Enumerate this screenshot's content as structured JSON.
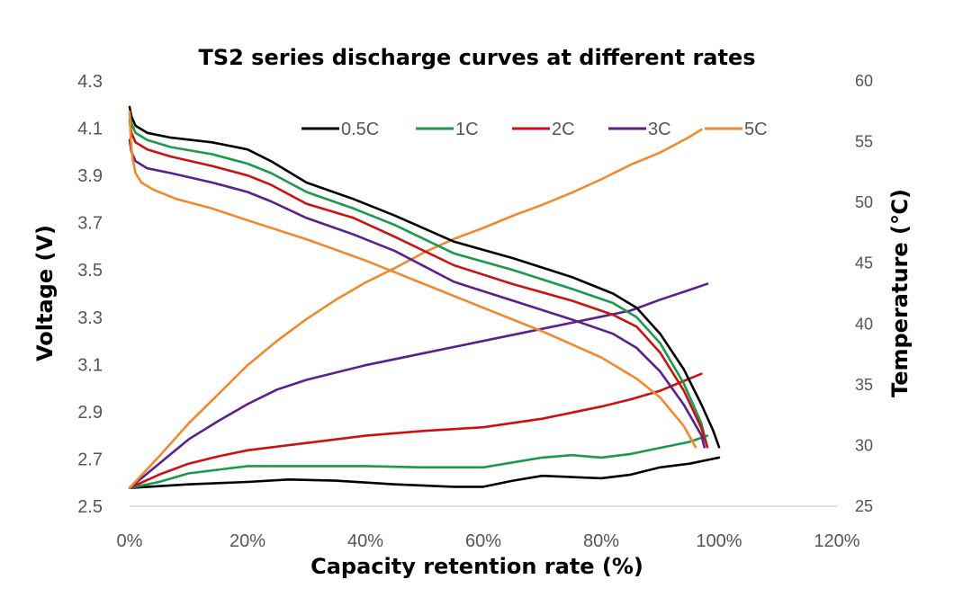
{
  "chart_data": {
    "type": "line",
    "title": "TS2 series discharge curves at different rates",
    "xlabel": "Capacity retention rate (%)",
    "ylabel": "Voltage (V)",
    "y2label": "Temperature (℃)",
    "xlim": [
      0,
      120
    ],
    "ylim": [
      2.5,
      4.3
    ],
    "y2lim": [
      25,
      60
    ],
    "xticks": [
      0,
      20,
      40,
      60,
      80,
      100,
      120
    ],
    "xtick_labels": [
      "0%",
      "20%",
      "40%",
      "60%",
      "80%",
      "100%",
      "120%"
    ],
    "yticks": [
      2.5,
      2.7,
      2.9,
      3.1,
      3.3,
      3.5,
      3.7,
      3.9,
      4.1,
      4.3
    ],
    "ytick_labels": [
      "2.5",
      "2.7",
      "2.9",
      "3.1",
      "3.3",
      "3.5",
      "3.7",
      "3.9",
      "4.1",
      "4.3"
    ],
    "y2ticks": [
      25,
      30,
      35,
      40,
      45,
      50,
      55,
      60
    ],
    "y2tick_labels": [
      "25",
      "30",
      "35",
      "40",
      "45",
      "50",
      "55",
      "60"
    ],
    "grid": false,
    "legend": "top",
    "series": [
      {
        "name": "0.5C",
        "color": "#000000",
        "voltage": {
          "x": [
            0,
            0.3,
            1,
            3,
            7,
            14,
            20,
            24,
            30,
            38,
            45,
            55,
            65,
            75,
            82,
            86,
            90,
            94,
            97,
            99,
            100
          ],
          "y": [
            4.19,
            4.15,
            4.11,
            4.08,
            4.06,
            4.04,
            4.01,
            3.96,
            3.87,
            3.8,
            3.73,
            3.62,
            3.55,
            3.47,
            3.4,
            3.34,
            3.23,
            3.08,
            2.93,
            2.82,
            2.75
          ]
        },
        "temperature": {
          "x": [
            0,
            10,
            20,
            27,
            35,
            45,
            55,
            60,
            65,
            70,
            75,
            80,
            85,
            90,
            95,
            100
          ],
          "y": [
            26.5,
            26.8,
            27,
            27.2,
            27.1,
            26.8,
            26.6,
            26.6,
            27.1,
            27.5,
            27.4,
            27.3,
            27.6,
            28.2,
            28.5,
            29
          ]
        }
      },
      {
        "name": "1C",
        "color": "#1a9a4a",
        "voltage": {
          "x": [
            0,
            0.3,
            1,
            3,
            7,
            14,
            20,
            24,
            30,
            38,
            45,
            55,
            65,
            75,
            82,
            86,
            90,
            94,
            97,
            98
          ],
          "y": [
            4.16,
            4.12,
            4.08,
            4.05,
            4.02,
            3.99,
            3.95,
            3.91,
            3.83,
            3.76,
            3.69,
            3.57,
            3.5,
            3.42,
            3.36,
            3.3,
            3.19,
            3.02,
            2.85,
            2.75
          ]
        },
        "temperature": {
          "x": [
            0,
            5,
            10,
            20,
            30,
            40,
            50,
            60,
            65,
            70,
            75,
            80,
            85,
            90,
            95,
            98
          ],
          "y": [
            26.5,
            27,
            27.7,
            28.3,
            28.3,
            28.3,
            28.2,
            28.2,
            28.6,
            29.0,
            29.2,
            29.0,
            29.3,
            29.8,
            30.3,
            30.8
          ]
        }
      },
      {
        "name": "2C",
        "color": "#cc1111",
        "voltage": {
          "x": [
            0,
            0.3,
            1,
            3,
            7,
            14,
            20,
            24,
            30,
            38,
            45,
            55,
            65,
            75,
            82,
            86,
            90,
            94,
            97,
            98
          ],
          "y": [
            4.13,
            4.08,
            4.04,
            4.01,
            3.98,
            3.94,
            3.9,
            3.86,
            3.78,
            3.72,
            3.64,
            3.52,
            3.44,
            3.37,
            3.31,
            3.26,
            3.15,
            2.99,
            2.83,
            2.75
          ]
        },
        "temperature": {
          "x": [
            0,
            5,
            10,
            15,
            20,
            30,
            40,
            50,
            60,
            70,
            80,
            85,
            90,
            93,
            95,
            97
          ],
          "y": [
            26.5,
            27.6,
            28.5,
            29.1,
            29.6,
            30.2,
            30.8,
            31.2,
            31.5,
            32.2,
            33.2,
            33.8,
            34.5,
            35.1,
            35.5,
            35.9
          ]
        }
      },
      {
        "name": "3C",
        "color": "#5b1f8e",
        "voltage": {
          "x": [
            0,
            0.3,
            1,
            3,
            7,
            14,
            20,
            24,
            30,
            38,
            45,
            55,
            65,
            75,
            82,
            86,
            90,
            94,
            97,
            97.5
          ],
          "y": [
            4.05,
            4.0,
            3.96,
            3.93,
            3.91,
            3.87,
            3.83,
            3.79,
            3.72,
            3.65,
            3.58,
            3.45,
            3.37,
            3.29,
            3.23,
            3.17,
            3.07,
            2.93,
            2.8,
            2.75
          ]
        },
        "temperature": {
          "x": [
            0,
            5,
            10,
            15,
            20,
            25,
            30,
            40,
            50,
            60,
            70,
            80,
            85,
            90,
            95,
            98
          ],
          "y": [
            26.5,
            28.5,
            30.5,
            32,
            33.4,
            34.6,
            35.4,
            36.6,
            37.6,
            38.6,
            39.6,
            40.6,
            41.1,
            42.0,
            42.8,
            43.3
          ]
        }
      },
      {
        "name": "5C",
        "color": "#f08a2e",
        "voltage": {
          "x": [
            0,
            0.2,
            0.5,
            1,
            2,
            4,
            8,
            14,
            20,
            30,
            40,
            50,
            60,
            70,
            80,
            86,
            90,
            94,
            96
          ],
          "y": [
            4.17,
            4.05,
            3.97,
            3.91,
            3.87,
            3.84,
            3.8,
            3.76,
            3.71,
            3.63,
            3.54,
            3.44,
            3.34,
            3.24,
            3.13,
            3.04,
            2.96,
            2.84,
            2.75
          ]
        },
        "temperature": {
          "x": [
            0,
            5,
            10,
            15,
            20,
            25,
            30,
            35,
            40,
            45,
            50,
            55,
            60,
            65,
            70,
            75,
            80,
            85,
            90,
            95,
            97
          ],
          "y": [
            26.5,
            29.1,
            31.8,
            34.2,
            36.6,
            38.6,
            40.4,
            42,
            43.4,
            44.6,
            45.9,
            47,
            47.9,
            48.9,
            49.8,
            50.8,
            51.9,
            53.1,
            54.1,
            55.4,
            56
          ]
        }
      }
    ]
  }
}
